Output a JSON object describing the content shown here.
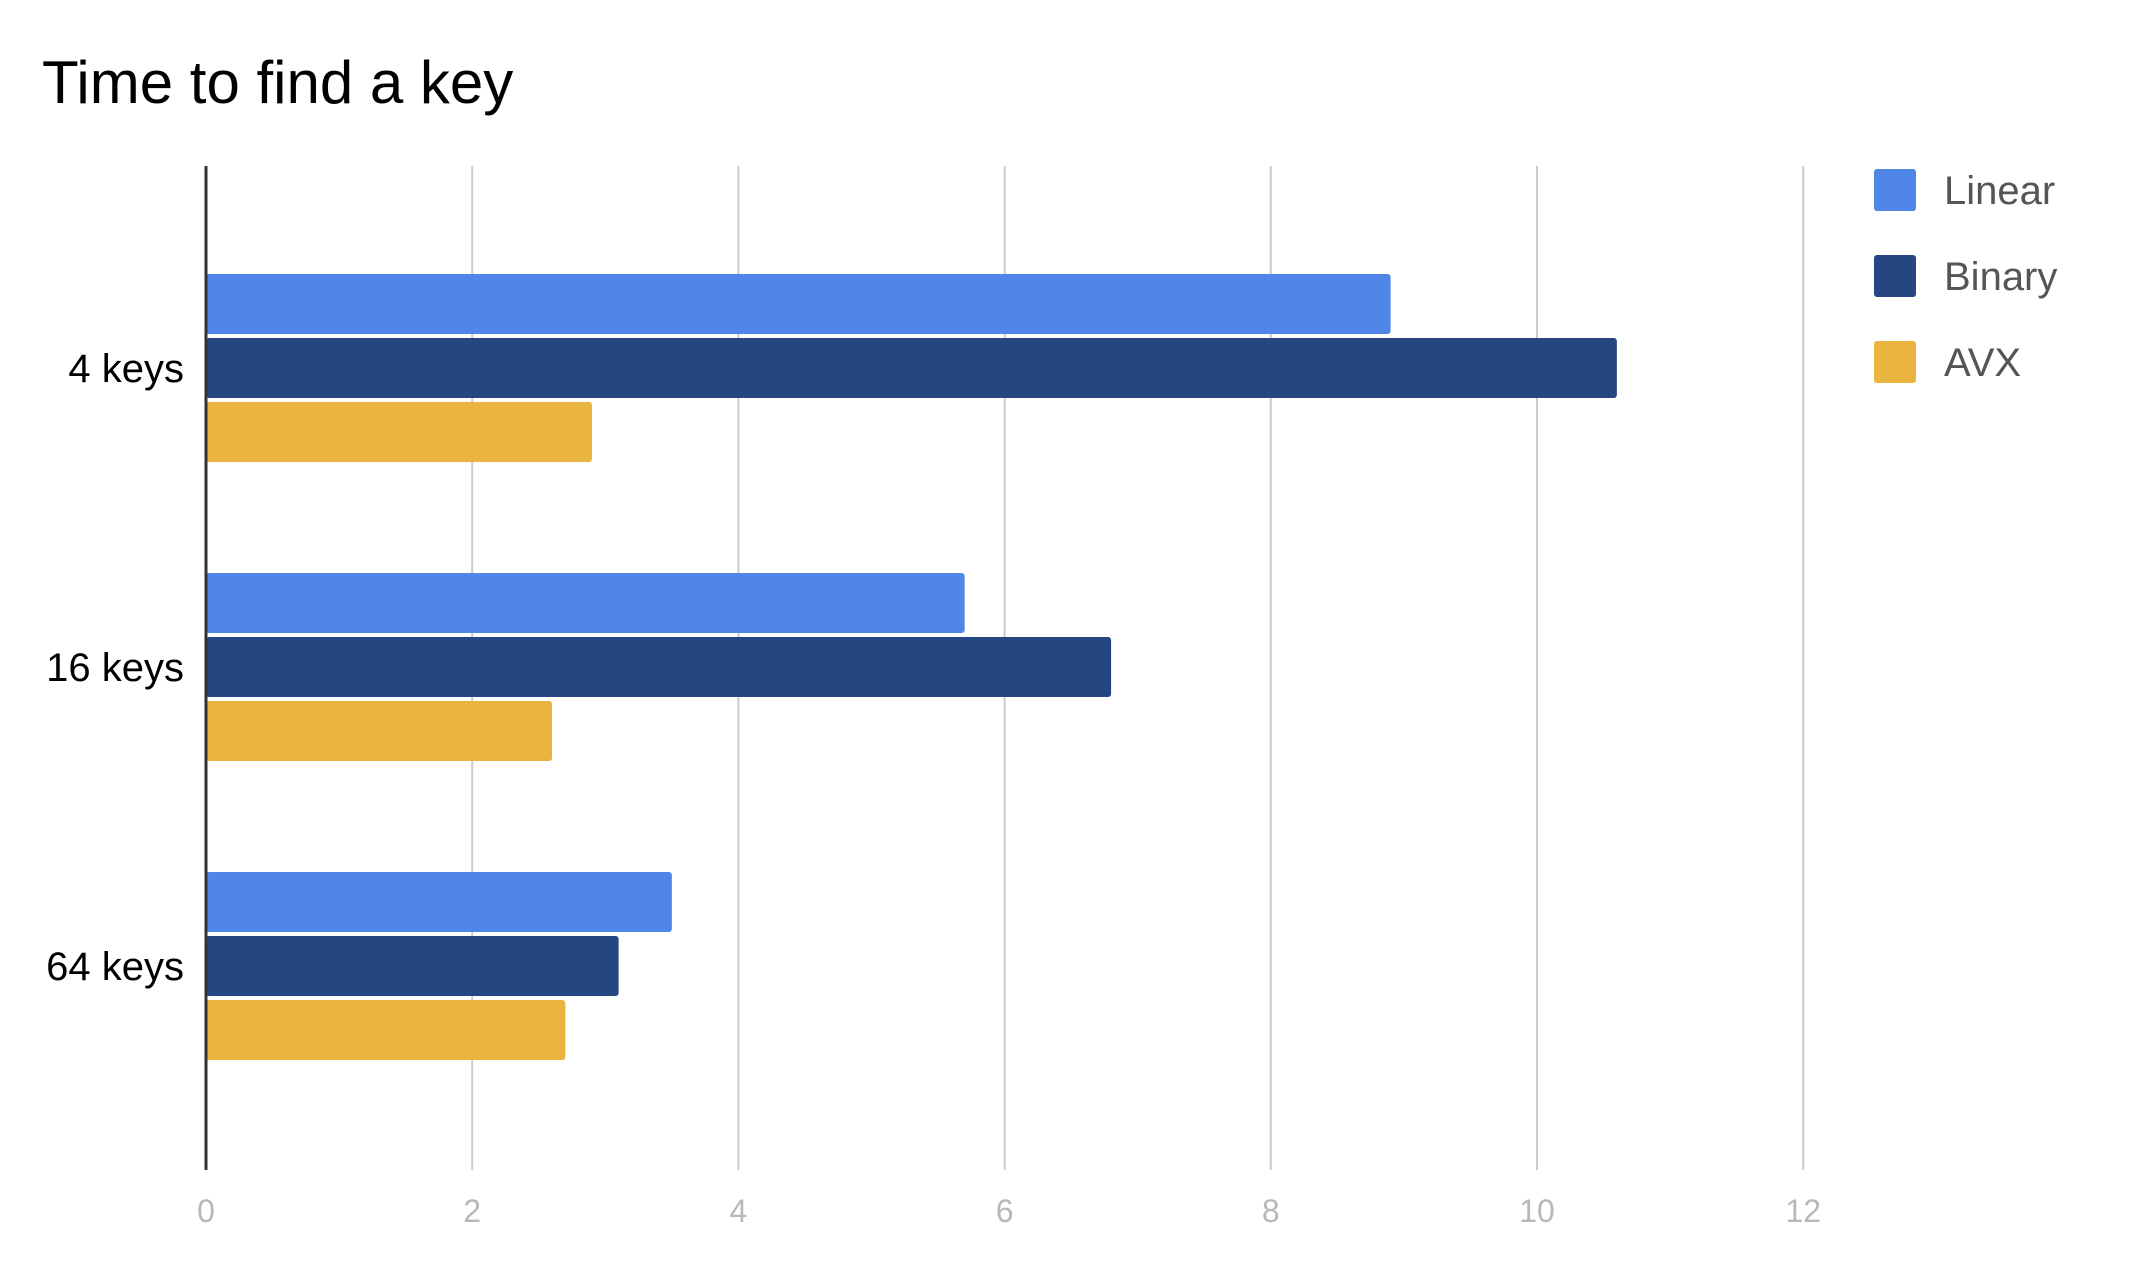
{
  "chart_data": {
    "type": "bar",
    "orientation": "horizontal",
    "title": "Time to find a key",
    "xlabel": "",
    "ylabel": "",
    "categories": [
      "4 keys",
      "16 keys",
      "64 keys"
    ],
    "series": [
      {
        "name": "Linear",
        "values": [
          8.9,
          5.7,
          3.5
        ],
        "color": "#4f86e8"
      },
      {
        "name": "Binary",
        "values": [
          10.6,
          6.8,
          3.1
        ],
        "color": "#244781"
      },
      {
        "name": "AVX",
        "values": [
          2.9,
          2.6,
          2.7
        ],
        "color": "#ebb43f"
      }
    ],
    "xlim": [
      0,
      12
    ],
    "xticks": [
      "0",
      "2",
      "4",
      "6",
      "8",
      "10",
      "12"
    ],
    "grid": true,
    "legend_position": "top-right"
  }
}
